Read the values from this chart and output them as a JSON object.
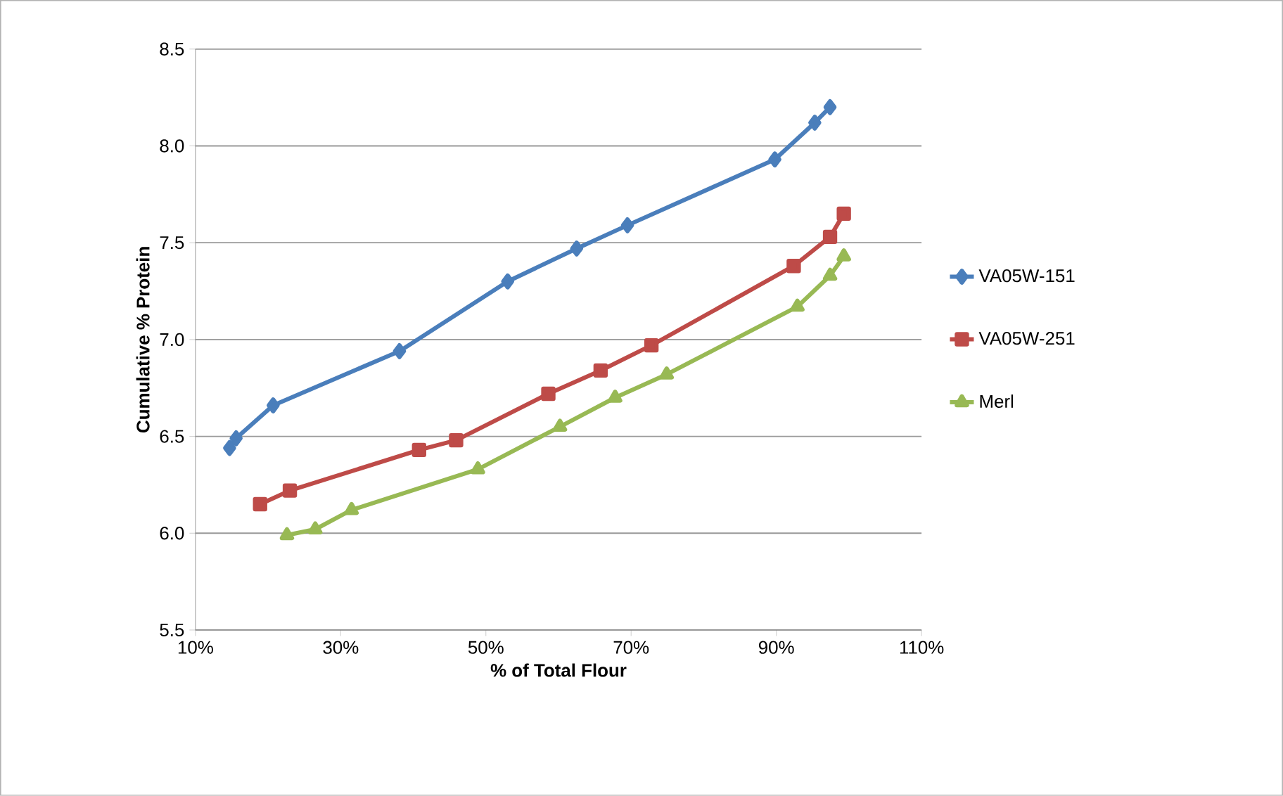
{
  "chart_data": {
    "type": "line",
    "xlabel": "% of Total Flour",
    "ylabel": "Cumulative % Protein",
    "xlim": [
      10,
      110
    ],
    "xticks": [
      {
        "value": 10,
        "label": "10%"
      },
      {
        "value": 30,
        "label": "30%"
      },
      {
        "value": 50,
        "label": "50%"
      },
      {
        "value": 70,
        "label": "70%"
      },
      {
        "value": 90,
        "label": "90%"
      },
      {
        "value": 110,
        "label": "110%"
      }
    ],
    "ylim": [
      5.5,
      8.5
    ],
    "yticks": [
      {
        "value": 5.5,
        "label": "5.5"
      },
      {
        "value": 6.0,
        "label": "6.0"
      },
      {
        "value": 6.5,
        "label": "6.5"
      },
      {
        "value": 7.0,
        "label": "7.0"
      },
      {
        "value": 7.5,
        "label": "7.5"
      },
      {
        "value": 8.0,
        "label": "8.0"
      },
      {
        "value": 8.5,
        "label": "8.5"
      }
    ],
    "grid": "y",
    "legend": "right",
    "series": [
      {
        "name": "VA05W-151",
        "color": "#4a7ebb",
        "marker": "diamond",
        "x": [
          14.7,
          15.6,
          20.7,
          38.1,
          53.0,
          62.5,
          69.5,
          89.8,
          95.3,
          97.4
        ],
        "values": [
          6.44,
          6.49,
          6.66,
          6.94,
          7.3,
          7.47,
          7.59,
          7.93,
          8.12,
          8.2
        ]
      },
      {
        "name": "VA05W-251",
        "color": "#be4b48",
        "marker": "square",
        "x": [
          18.9,
          23.0,
          40.8,
          45.9,
          58.6,
          65.8,
          72.8,
          92.4,
          97.4,
          99.3
        ],
        "values": [
          6.15,
          6.22,
          6.43,
          6.48,
          6.72,
          6.84,
          6.97,
          7.38,
          7.53,
          7.65
        ]
      },
      {
        "name": "Merl",
        "color": "#98b954",
        "marker": "triangle",
        "x": [
          22.6,
          26.5,
          31.5,
          48.9,
          60.2,
          67.8,
          74.9,
          92.9,
          97.4,
          99.3
        ],
        "values": [
          5.99,
          6.02,
          6.12,
          6.33,
          6.55,
          6.7,
          6.82,
          7.17,
          7.33,
          7.43
        ]
      }
    ]
  }
}
